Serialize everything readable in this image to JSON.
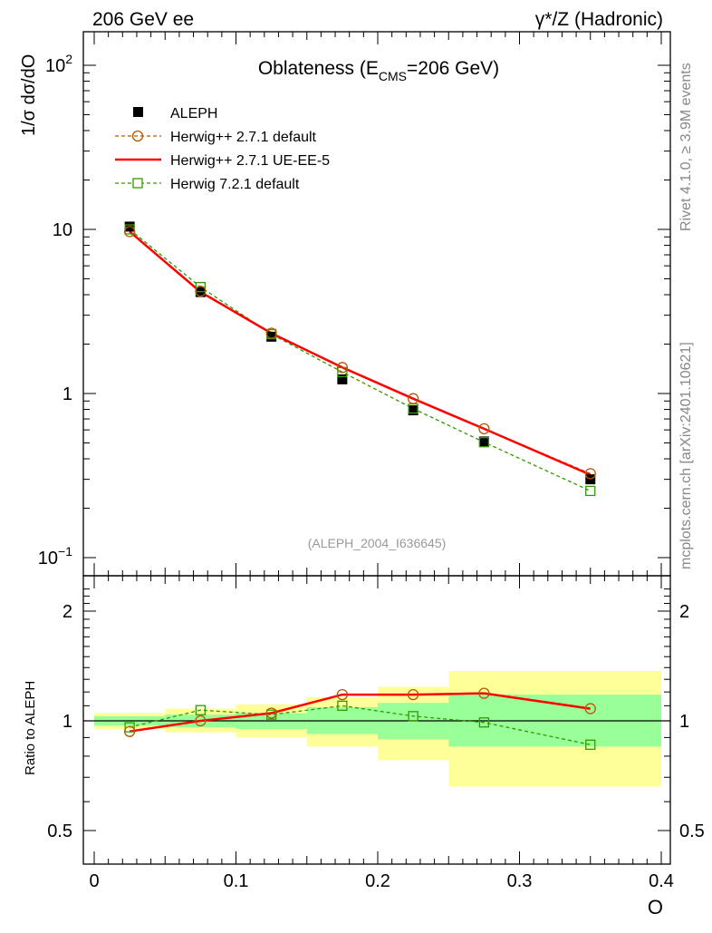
{
  "header": {
    "left_label": "206 GeV ee",
    "right_label": "γ*/Z (Hadronic)"
  },
  "side_labels": {
    "rivet": "Rivet 4.1.0, ≥ 3.9M events",
    "mcplots": "mcplots.cern.ch [arXiv:2401.10621]"
  },
  "chart_data": {
    "type": "line",
    "title_main": "Oblateness (E",
    "title_sub": "CMS",
    "title_tail": "=206 GeV)",
    "analysis_id": "(ALEPH_2004_I636645)",
    "xlabel": "O",
    "ylabel": "1/σ  dσ/dO",
    "ratio_ylabel": "Ratio to ALEPH",
    "xlim": [
      0,
      0.4
    ],
    "ylim": [
      0.1,
      160
    ],
    "yscale": "log",
    "x_ticks": [
      "0",
      "0.1",
      "0.2",
      "0.3",
      "0.4"
    ],
    "x_tick_values": [
      0,
      0.1,
      0.2,
      0.3,
      0.4
    ],
    "y_ticks": [
      {
        "value": 100,
        "base": "10",
        "exp": "2"
      },
      {
        "value": 10,
        "base": "10",
        "exp": ""
      },
      {
        "value": 1,
        "base": "1",
        "exp": ""
      },
      {
        "value": 0.1,
        "base": "10",
        "exp": "−1"
      }
    ],
    "ratio_ylim": [
      0.4,
      2.3
    ],
    "ratio_yscale": "log",
    "ratio_y_ticks": [
      {
        "value": 0.5,
        "label": "0.5"
      },
      {
        "value": 1,
        "label": "1"
      },
      {
        "value": 2,
        "label": "2"
      }
    ],
    "bins": [
      {
        "lo": 0.0,
        "hi": 0.05,
        "x": 0.025
      },
      {
        "lo": 0.05,
        "hi": 0.1,
        "x": 0.075
      },
      {
        "lo": 0.1,
        "hi": 0.15,
        "x": 0.125
      },
      {
        "lo": 0.15,
        "hi": 0.2,
        "x": 0.175
      },
      {
        "lo": 0.2,
        "hi": 0.25,
        "x": 0.225
      },
      {
        "lo": 0.25,
        "hi": 0.3,
        "x": 0.275
      },
      {
        "lo": 0.3,
        "hi": 0.4,
        "x": 0.35
      }
    ],
    "legend": [
      {
        "label": "ALEPH",
        "style": "data"
      },
      {
        "label": "Herwig++ 2.7.1 default",
        "style": "brown-circle"
      },
      {
        "label": "Herwig++ 2.7.1 UE-EE-5",
        "style": "red-line"
      },
      {
        "label": "Herwig 7.2.1 default",
        "style": "green-square"
      }
    ],
    "series": [
      {
        "name": "ALEPH",
        "color": "#000000",
        "x": [
          0.025,
          0.075,
          0.125,
          0.175,
          0.225,
          0.275,
          0.35
        ],
        "values": [
          10.4,
          4.15,
          2.22,
          1.22,
          0.79,
          0.51,
          0.3
        ]
      },
      {
        "name": "Herwig++ 2.7.1 default",
        "color": "#b35900",
        "x": [
          0.025,
          0.075,
          0.125,
          0.175,
          0.225,
          0.275,
          0.35
        ],
        "values": [
          9.7,
          4.2,
          2.33,
          1.44,
          0.93,
          0.61,
          0.325
        ]
      },
      {
        "name": "Herwig++ 2.7.1 UE-EE-5",
        "color": "#ff0000",
        "x": [
          0.025,
          0.075,
          0.125,
          0.175,
          0.225,
          0.275,
          0.35
        ],
        "values": [
          9.7,
          4.15,
          2.33,
          1.44,
          0.93,
          0.61,
          0.32
        ]
      },
      {
        "name": "Herwig 7.2.1 default",
        "color": "#339900",
        "x": [
          0.025,
          0.075,
          0.125,
          0.175,
          0.225,
          0.275,
          0.35
        ],
        "values": [
          10.0,
          4.45,
          2.3,
          1.35,
          0.81,
          0.505,
          0.255
        ]
      }
    ],
    "ratio": {
      "band_yellow": [
        {
          "lo": 0.0,
          "hi": 0.05,
          "min": 0.95,
          "max": 1.05
        },
        {
          "lo": 0.05,
          "hi": 0.1,
          "min": 0.93,
          "max": 1.08
        },
        {
          "lo": 0.1,
          "hi": 0.15,
          "min": 0.9,
          "max": 1.11
        },
        {
          "lo": 0.15,
          "hi": 0.2,
          "min": 0.85,
          "max": 1.16
        },
        {
          "lo": 0.2,
          "hi": 0.25,
          "min": 0.78,
          "max": 1.24
        },
        {
          "lo": 0.25,
          "hi": 0.4,
          "min": 0.66,
          "max": 1.37
        }
      ],
      "band_green": [
        {
          "lo": 0.0,
          "hi": 0.05,
          "min": 0.97,
          "max": 1.03
        },
        {
          "lo": 0.05,
          "hi": 0.1,
          "min": 0.96,
          "max": 1.04
        },
        {
          "lo": 0.1,
          "hi": 0.15,
          "min": 0.95,
          "max": 1.05
        },
        {
          "lo": 0.15,
          "hi": 0.2,
          "min": 0.92,
          "max": 1.09
        },
        {
          "lo": 0.2,
          "hi": 0.25,
          "min": 0.89,
          "max": 1.12
        },
        {
          "lo": 0.25,
          "hi": 0.4,
          "min": 0.85,
          "max": 1.18
        }
      ],
      "series": [
        {
          "name": "Herwig++ 2.7.1 default",
          "values": [
            0.935,
            1.0,
            1.05,
            1.18,
            1.18,
            1.19,
            1.08
          ]
        },
        {
          "name": "Herwig++ 2.7.1 UE-EE-5",
          "values": [
            0.935,
            1.0,
            1.05,
            1.18,
            1.18,
            1.19,
            1.08
          ]
        },
        {
          "name": "Herwig 7.2.1 default",
          "values": [
            0.96,
            1.07,
            1.04,
            1.1,
            1.03,
            0.99,
            0.86
          ]
        }
      ]
    }
  }
}
